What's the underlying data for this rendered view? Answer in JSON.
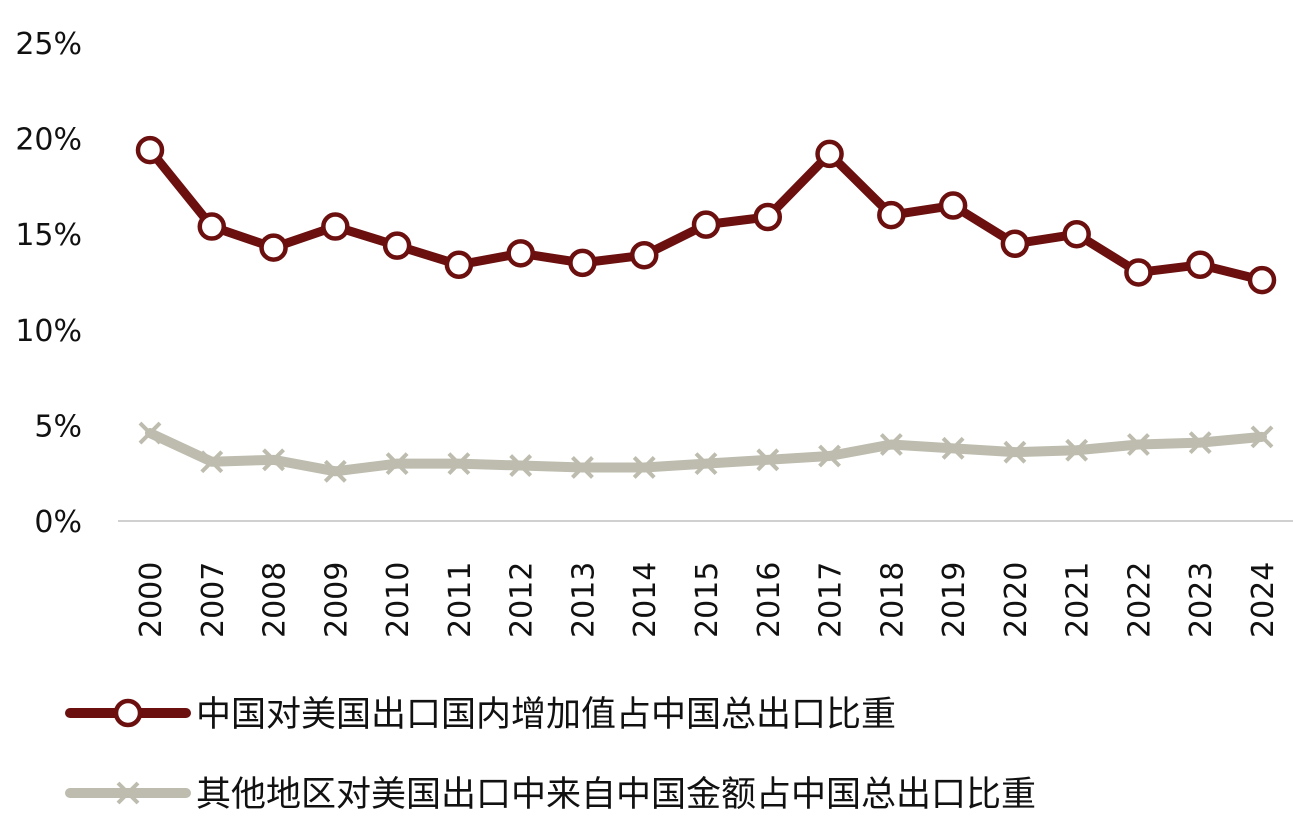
{
  "chart_data": {
    "type": "line",
    "categories": [
      "2000",
      "2007",
      "2008",
      "2009",
      "2010",
      "2011",
      "2012",
      "2013",
      "2014",
      "2015",
      "2016",
      "2017",
      "2018",
      "2019",
      "2020",
      "2021",
      "2022",
      "2023",
      "2024"
    ],
    "series": [
      {
        "name": "中国对美国出口国内增加值占中国总出口比重",
        "color": "#6b0f0f",
        "marker": "circle",
        "values": [
          19.4,
          15.4,
          14.3,
          15.4,
          14.4,
          13.4,
          14.0,
          13.5,
          13.9,
          15.5,
          15.9,
          19.2,
          16.0,
          16.5,
          14.5,
          15.0,
          13.0,
          13.4,
          12.6
        ]
      },
      {
        "name": "其他地区对美国出口中来自中国金额占中国总出口比重",
        "color": "#bdbcae",
        "marker": "x",
        "values": [
          4.6,
          3.1,
          3.2,
          2.6,
          3.0,
          3.0,
          2.9,
          2.8,
          2.8,
          3.0,
          3.2,
          3.4,
          4.0,
          3.8,
          3.6,
          3.7,
          4.0,
          4.1,
          4.4
        ]
      }
    ],
    "yticks": [
      "0%",
      "5%",
      "10%",
      "15%",
      "20%",
      "25%"
    ],
    "ylim": [
      0,
      25
    ],
    "grid": false,
    "legend_position": "bottom"
  }
}
